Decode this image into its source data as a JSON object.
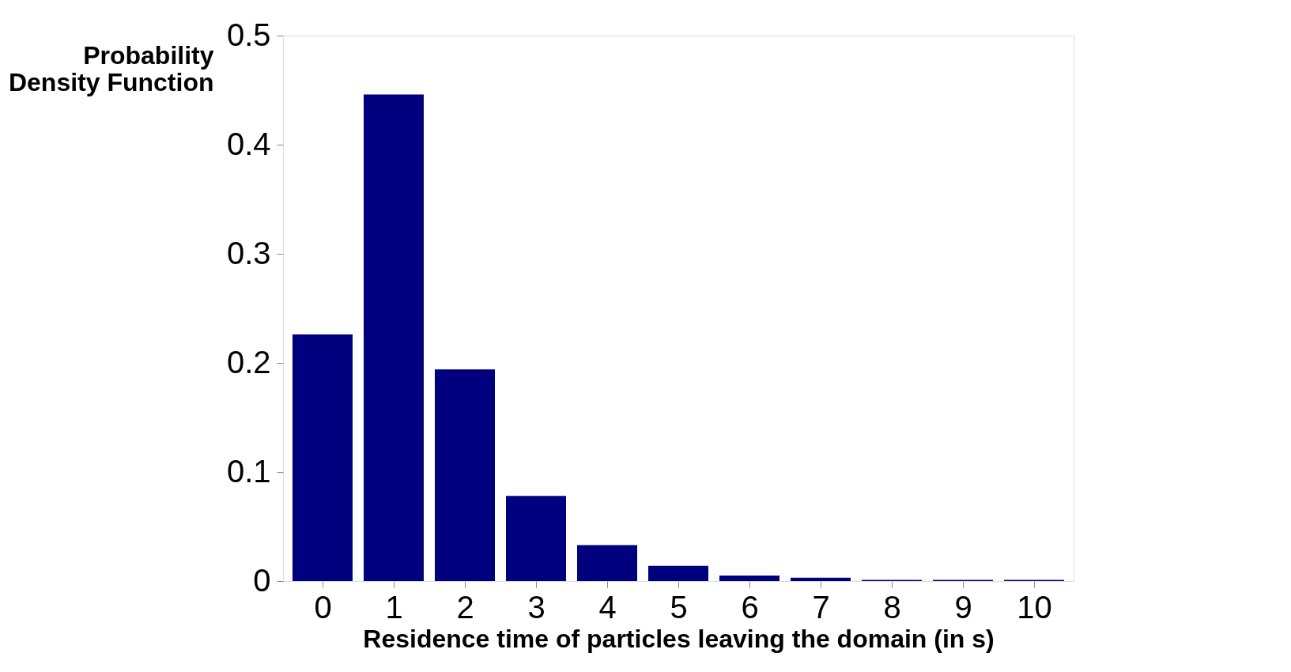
{
  "chart_data": {
    "type": "bar",
    "xlabel": "Residence time of particles leaving the domain (in s)",
    "ylabel": "Probability\nDensity Function",
    "categories": [
      "0",
      "1",
      "2",
      "3",
      "4",
      "5",
      "6",
      "7",
      "8",
      "9",
      "10"
    ],
    "values": [
      0.226,
      0.446,
      0.194,
      0.078,
      0.033,
      0.014,
      0.005,
      0.003,
      0.001,
      0.001,
      0.001
    ],
    "color": "#00007f",
    "ylim": [
      0,
      0.5
    ],
    "yticks": [
      {
        "value": 0,
        "label": "0"
      },
      0.1,
      0.2,
      0.3,
      0.4,
      0.5
    ],
    "grid": false
  }
}
